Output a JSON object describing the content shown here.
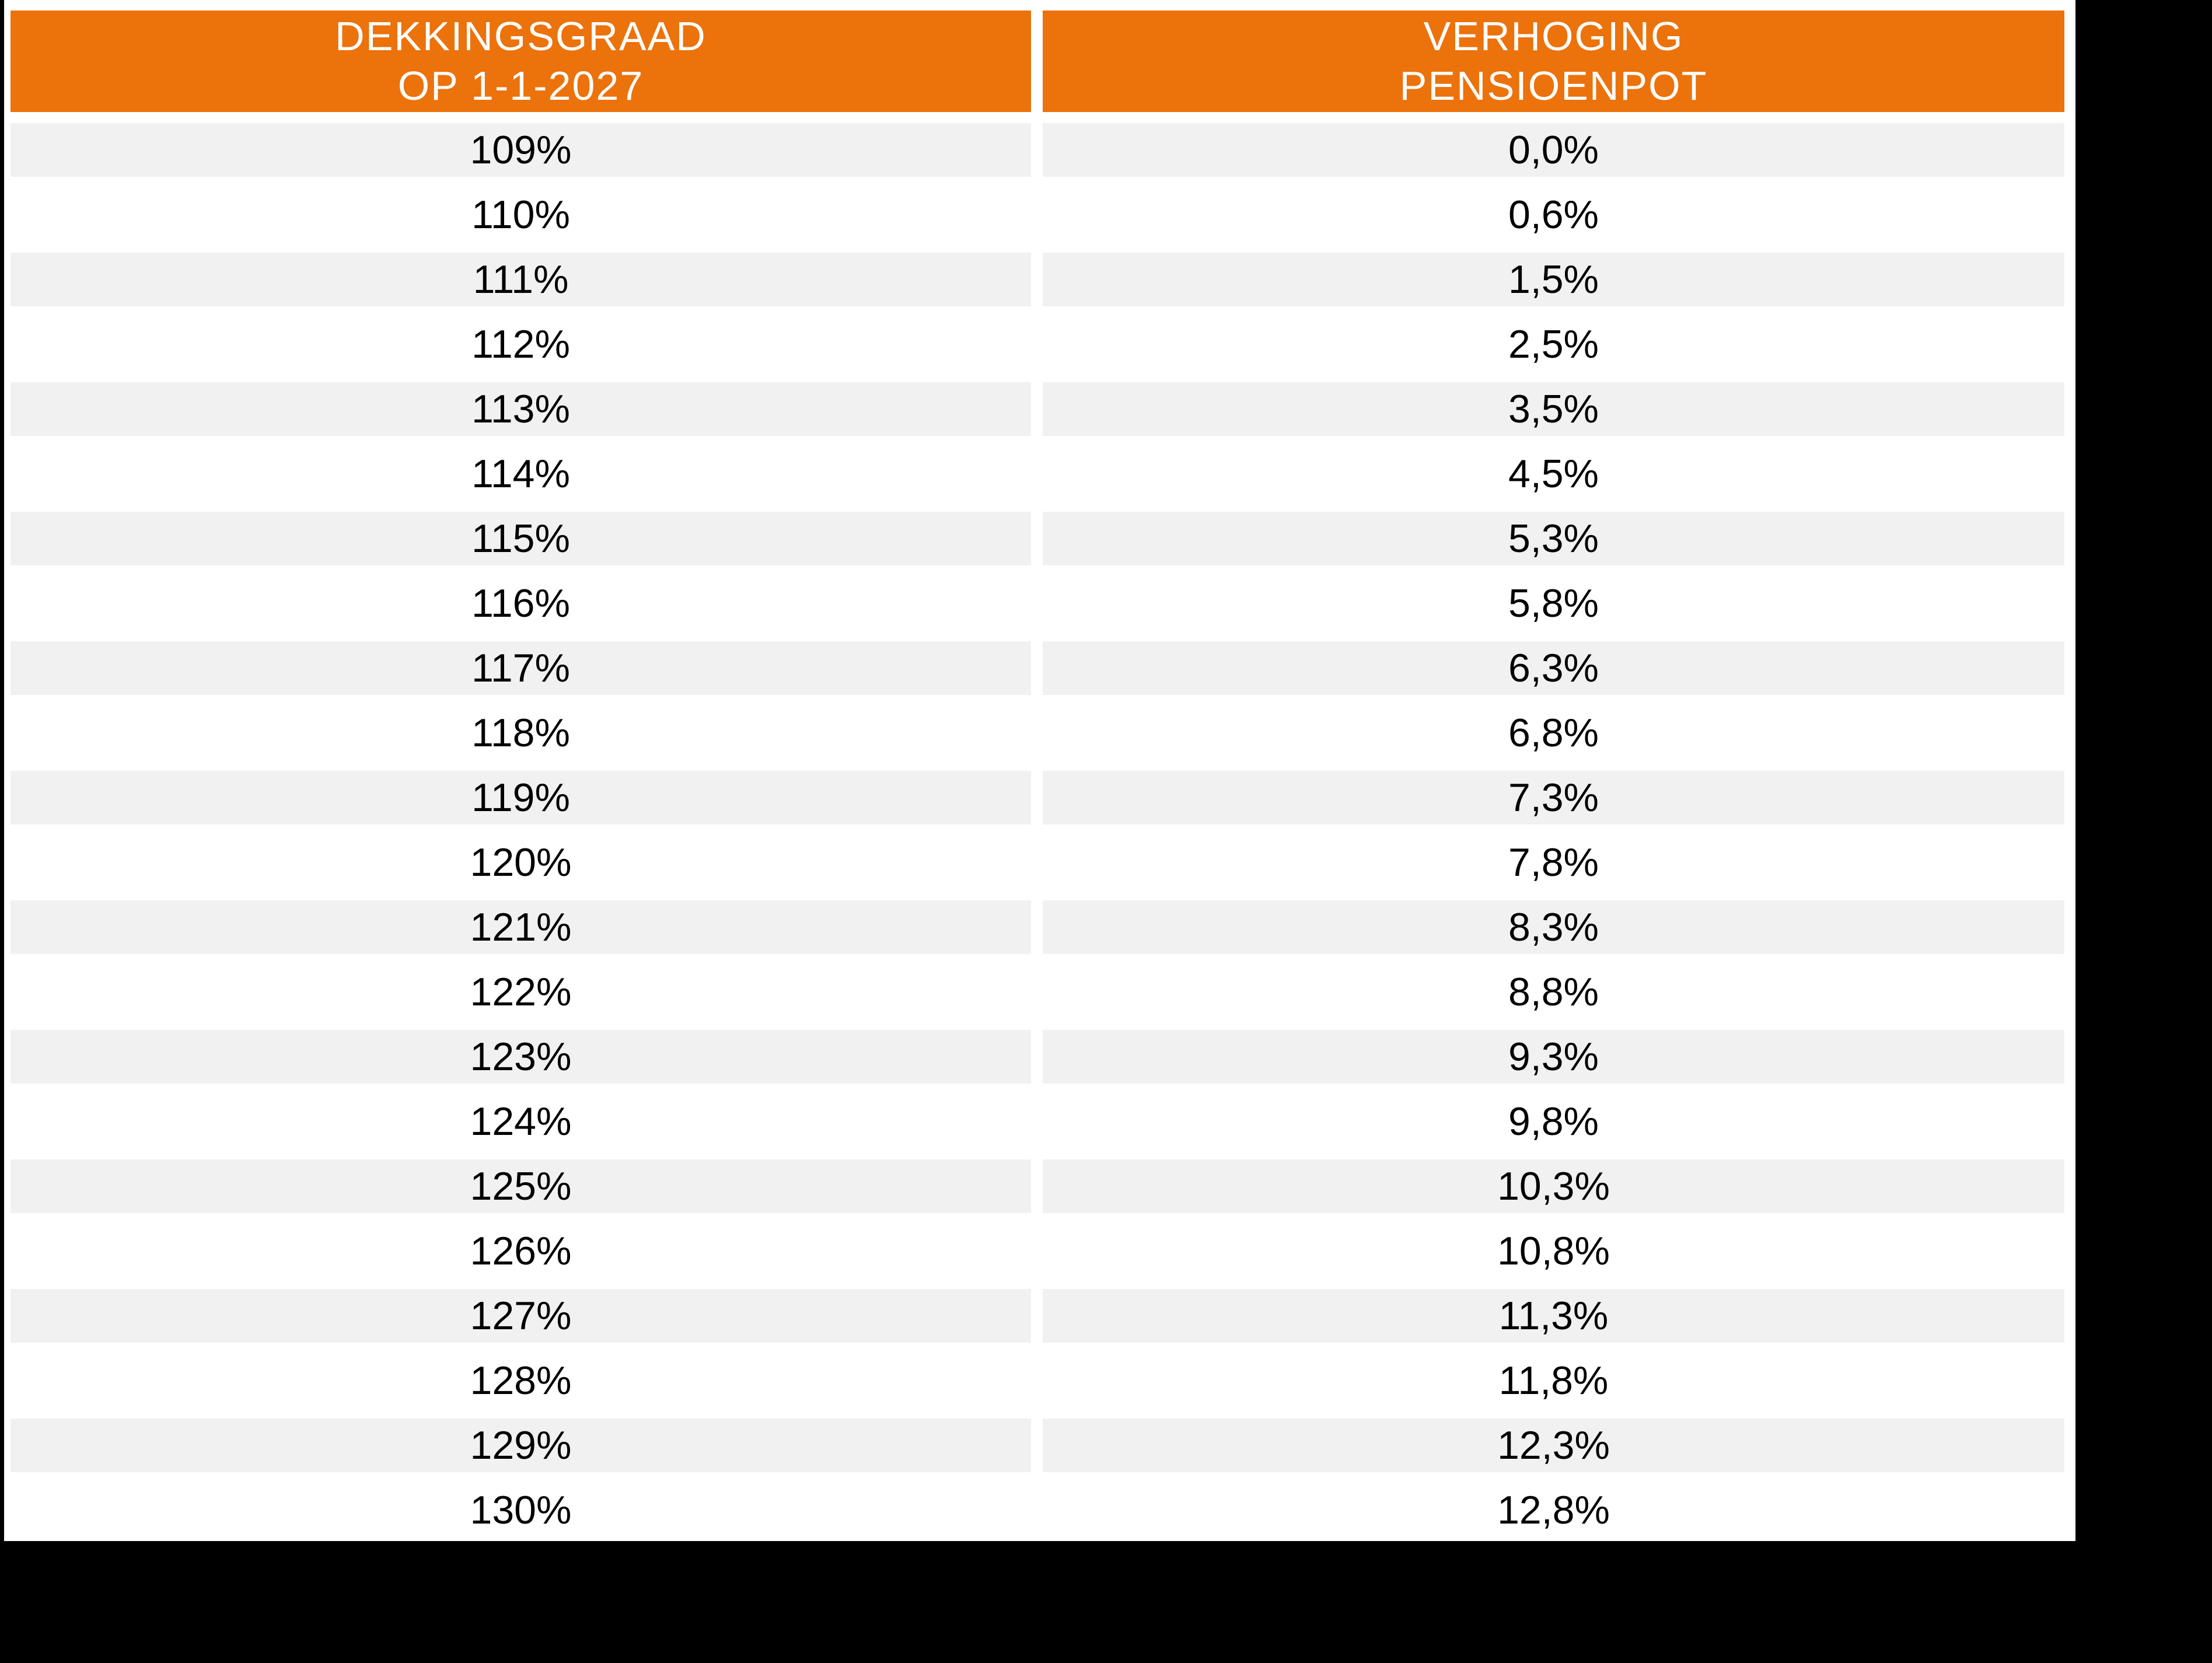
{
  "colors": {
    "header_background": "#EC720C",
    "header_text": "#FFFFFF",
    "row_stripe": "#F1F1F1",
    "row_plain": "#FFFFFF",
    "body_text": "#000000",
    "letterbox": "#000000"
  },
  "table": {
    "headers": [
      {
        "line1": "DEKKINGSGRAAD",
        "line2": "OP 1-1-2027"
      },
      {
        "line1": "VERHOGING",
        "line2": "PENSIOENPOT"
      }
    ],
    "rows": [
      {
        "dekkingsgraad": "109%",
        "verhoging": "0,0%"
      },
      {
        "dekkingsgraad": "110%",
        "verhoging": "0,6%"
      },
      {
        "dekkingsgraad": "111%",
        "verhoging": "1,5%"
      },
      {
        "dekkingsgraad": "112%",
        "verhoging": "2,5%"
      },
      {
        "dekkingsgraad": "113%",
        "verhoging": "3,5%"
      },
      {
        "dekkingsgraad": "114%",
        "verhoging": "4,5%"
      },
      {
        "dekkingsgraad": "115%",
        "verhoging": "5,3%"
      },
      {
        "dekkingsgraad": "116%",
        "verhoging": "5,8%"
      },
      {
        "dekkingsgraad": "117%",
        "verhoging": "6,3%"
      },
      {
        "dekkingsgraad": "118%",
        "verhoging": "6,8%"
      },
      {
        "dekkingsgraad": "119%",
        "verhoging": "7,3%"
      },
      {
        "dekkingsgraad": "120%",
        "verhoging": "7,8%"
      },
      {
        "dekkingsgraad": "121%",
        "verhoging": "8,3%"
      },
      {
        "dekkingsgraad": "122%",
        "verhoging": "8,8%"
      },
      {
        "dekkingsgraad": "123%",
        "verhoging": "9,3%"
      },
      {
        "dekkingsgraad": "124%",
        "verhoging": "9,8%"
      },
      {
        "dekkingsgraad": "125%",
        "verhoging": "10,3%"
      },
      {
        "dekkingsgraad": "126%",
        "verhoging": "10,8%"
      },
      {
        "dekkingsgraad": "127%",
        "verhoging": "11,3%"
      },
      {
        "dekkingsgraad": "128%",
        "verhoging": "11,8%"
      },
      {
        "dekkingsgraad": "129%",
        "verhoging": "12,3%"
      },
      {
        "dekkingsgraad": "130%",
        "verhoging": "12,8%"
      }
    ]
  }
}
